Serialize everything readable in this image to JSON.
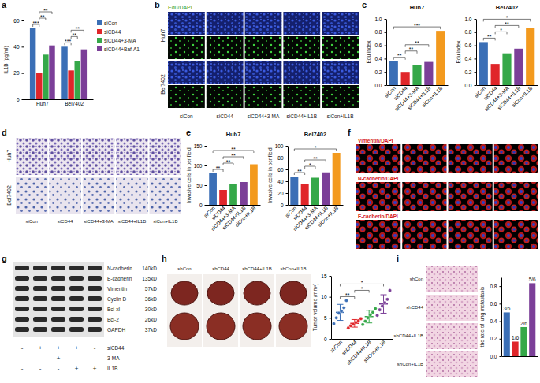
{
  "panel_letters": [
    "a",
    "b",
    "c",
    "d",
    "e",
    "f",
    "g",
    "h",
    "i"
  ],
  "chart_data": [
    {
      "type": "bar",
      "categories": [
        "Huh7",
        "Bel7402"
      ],
      "series": [
        {
          "name": "siCon",
          "color": "#3b6fb6",
          "values": [
            54,
            40
          ]
        },
        {
          "name": "siCD44",
          "color": "#e0262a",
          "values": [
            20,
            22
          ]
        },
        {
          "name": "siCD44+3-MA",
          "color": "#35a849",
          "values": [
            34,
            29
          ]
        },
        {
          "name": "siCD44+Baf-A1",
          "color": "#7b3f98",
          "values": [
            41,
            38
          ]
        }
      ],
      "ylabel": "IL1B (pg/ml)",
      "ylim": [
        0,
        60
      ],
      "yticks": [
        0,
        20,
        40,
        60
      ],
      "legend": "right",
      "annotations": [
        {
          "label": "***",
          "category": "Huh7",
          "between": [
            "siCon",
            "siCD44"
          ]
        },
        {
          "label": "**",
          "category": "Huh7",
          "between": [
            "siCD44",
            "siCD44+3-MA"
          ]
        },
        {
          "label": "**",
          "category": "Huh7",
          "between": [
            "siCD44",
            "siCD44+Baf-A1"
          ]
        },
        {
          "label": "***",
          "category": "Bel7402",
          "between": [
            "siCon",
            "siCD44"
          ]
        },
        {
          "label": "**",
          "category": "Bel7402",
          "between": [
            "siCD44",
            "siCD44+3-MA"
          ]
        },
        {
          "label": "**",
          "category": "Bel7402",
          "between": [
            "siCD44",
            "siCD44+Baf-A1"
          ]
        }
      ]
    },
    {
      "type": "bar",
      "title": "Huh7",
      "categories": [
        "siCon",
        "siCD44",
        "siCD44+3-MA",
        "siCD44+IL1B",
        "siCon+IL1B"
      ],
      "values": [
        0.36,
        0.2,
        0.3,
        0.35,
        0.82
      ],
      "colors": [
        "#3b6fb6",
        "#e0262a",
        "#35a849",
        "#7b3f98",
        "#f39a1e"
      ],
      "ylabel": "Edu index",
      "ylim": [
        0,
        1
      ],
      "yticks": [
        {
          "value": 0,
          "label": "0.0"
        },
        {
          "value": 0.2,
          "label": "0.2"
        },
        {
          "value": 0.4,
          "label": "0.4"
        },
        {
          "value": 0.6,
          "label": "0.6"
        },
        {
          "value": 0.8,
          "label": "0.8"
        },
        {
          "value": 1,
          "label": "1.0"
        }
      ],
      "annotations": [
        {
          "label": "**",
          "between": [
            "siCon",
            "siCD44"
          ]
        },
        {
          "label": "**",
          "between": [
            "siCD44",
            "siCD44+3-MA"
          ]
        },
        {
          "label": "**",
          "between": [
            "siCD44",
            "siCD44+IL1B"
          ]
        },
        {
          "label": "***",
          "between": [
            "siCon",
            "siCon+IL1B"
          ]
        }
      ]
    },
    {
      "type": "bar",
      "title": "Bel7402",
      "categories": [
        "siCon",
        "siCD44",
        "siCD44+3-MA",
        "siCD44+IL1B",
        "siCon+IL1B"
      ],
      "values": [
        0.65,
        0.32,
        0.48,
        0.55,
        0.86
      ],
      "colors": [
        "#3b6fb6",
        "#e0262a",
        "#35a849",
        "#7b3f98",
        "#f39a1e"
      ],
      "ylabel": "Edu index",
      "ylim": [
        0,
        1
      ],
      "yticks": [
        {
          "value": 0,
          "label": "0.0"
        },
        {
          "value": 0.2,
          "label": "0.2"
        },
        {
          "value": 0.4,
          "label": "0.4"
        },
        {
          "value": 0.6,
          "label": "0.6"
        },
        {
          "value": 0.8,
          "label": "0.8"
        },
        {
          "value": 1,
          "label": "1.0"
        }
      ],
      "annotations": [
        {
          "label": "**",
          "between": [
            "siCon",
            "siCD44"
          ]
        },
        {
          "label": "*",
          "between": [
            "siCD44",
            "siCD44+3-MA"
          ]
        },
        {
          "label": "**",
          "between": [
            "siCD44",
            "siCD44+IL1B"
          ]
        },
        {
          "label": "*",
          "between": [
            "siCon",
            "siCon+IL1B"
          ]
        }
      ]
    },
    {
      "type": "bar",
      "title": "Huh7",
      "categories": [
        "siCon",
        "siCD44",
        "siCD44+3-MA",
        "siCD44+IL1B",
        "siCon+IL1B"
      ],
      "values": [
        80,
        38,
        52,
        58,
        103
      ],
      "colors": [
        "#3b6fb6",
        "#e0262a",
        "#35a849",
        "#7b3f98",
        "#f39a1e"
      ],
      "ylabel": "Invasive cells in per field",
      "ylim": [
        0,
        150
      ],
      "yticks": [
        0,
        50,
        100,
        150
      ],
      "annotations": [
        {
          "label": "**",
          "between": [
            "siCon",
            "siCD44"
          ]
        },
        {
          "label": "**",
          "between": [
            "siCD44",
            "siCD44+3-MA"
          ]
        },
        {
          "label": "**",
          "between": [
            "siCD44",
            "siCD44+IL1B"
          ]
        },
        {
          "label": "**",
          "between": [
            "siCon",
            "siCon+IL1B"
          ]
        }
      ]
    },
    {
      "type": "bar",
      "title": "Bel7402",
      "categories": [
        "siCon",
        "siCD44",
        "siCD44+3-MA",
        "siCD44+IL1B",
        "siCon+IL1B"
      ],
      "values": [
        48,
        35,
        46,
        55,
        88
      ],
      "colors": [
        "#3b6fb6",
        "#e0262a",
        "#35a849",
        "#7b3f98",
        "#f39a1e"
      ],
      "ylabel": "Invasive cells in per field",
      "ylim": [
        0,
        100
      ],
      "yticks": [
        0,
        20,
        40,
        60,
        80,
        100
      ],
      "annotations": [
        {
          "label": "**",
          "between": [
            "siCon",
            "siCD44"
          ]
        },
        {
          "label": "*",
          "between": [
            "siCD44",
            "siCD44+3-MA"
          ]
        },
        {
          "label": "**",
          "between": [
            "siCD44",
            "siCD44+IL1B"
          ]
        },
        {
          "label": "*",
          "between": [
            "siCon",
            "siCon+IL1B"
          ]
        }
      ]
    },
    {
      "type": "dot",
      "categories": [
        "shCon",
        "shCD44",
        "shCD44+IL1B",
        "shCon+IL1B"
      ],
      "values": [
        6.3,
        3.7,
        5.3,
        8.3
      ],
      "errors": [
        1.9,
        0.9,
        1.5,
        2.2
      ],
      "points": [
        [
          3.6,
          5.0,
          6.1,
          6.6,
          7.4,
          9.1
        ],
        [
          2.6,
          3.1,
          3.5,
          3.9,
          4.3,
          4.8
        ],
        [
          3.4,
          4.2,
          5.0,
          5.7,
          6.3,
          7.2
        ],
        [
          5.6,
          6.9,
          7.8,
          8.6,
          9.4,
          11.5
        ]
      ],
      "colors": [
        "#3b6fb6",
        "#e0262a",
        "#35a849",
        "#7b3f98"
      ],
      "ylabel": "Tumor volume (mm³)",
      "ylim": [
        0,
        15
      ],
      "yticks": [
        0,
        5,
        10,
        15
      ],
      "annotations": [
        {
          "label": "**",
          "between": [
            "shCon",
            "shCD44"
          ]
        },
        {
          "label": "*",
          "between": [
            "shCD44",
            "shCD44+IL1B"
          ]
        },
        {
          "label": "*",
          "between": [
            "shCon",
            "shCon+IL1B"
          ]
        }
      ]
    },
    {
      "type": "bar",
      "categories": [
        null,
        null,
        null,
        null
      ],
      "values": [
        0.5,
        0.1667,
        0.3333,
        0.8333
      ],
      "value_labels": [
        "3/6",
        "1/6",
        "2/6",
        "5/6"
      ],
      "data_labels": true,
      "tick_labels": "y",
      "colors": [
        "#3b6fb6",
        "#e0262a",
        "#35a849",
        "#7b3f98"
      ],
      "ylabel": "the rate of lung metastasis",
      "ylim": [
        0,
        0.9
      ],
      "yticks": [
        {
          "value": 0,
          "label": "0.0"
        },
        {
          "value": 0.2,
          "label": "0.2"
        },
        {
          "value": 0.4,
          "label": "0.4"
        },
        {
          "value": 0.6,
          "label": "0.6"
        },
        {
          "value": 0.8,
          "label": "0.8"
        }
      ]
    }
  ],
  "image_panels": {
    "b": {
      "channel_label": "Edu/DAPI",
      "rows": [
        "Huh7",
        "Bel7402"
      ],
      "columns": [
        "siCon",
        "siCD44",
        "siCD44+3-MA",
        "siCD44+IL1B",
        "siCon+IL1B"
      ]
    },
    "d": {
      "rows": [
        "Huh7",
        "Bel7402"
      ],
      "columns": [
        "siCon",
        "siCD44",
        "siCD44+3-MA",
        "siCD44+IL1B",
        "siCon+IL1B"
      ]
    },
    "f": {
      "rows": [
        "Vimentin/DAPI",
        "N-cadherin/DAPI",
        "E-cadherin/DAPI"
      ]
    },
    "g": {
      "proteins": [
        {
          "name": "N-cadherin",
          "size": "140kD"
        },
        {
          "name": "E-cadherin",
          "size": "135kD"
        },
        {
          "name": "Vimentin",
          "size": "57kD"
        },
        {
          "name": "Cyclin D",
          "size": "36kD"
        },
        {
          "name": "Bcl-xl",
          "size": "30kD"
        },
        {
          "name": "Bcl-2",
          "size": "26kD"
        },
        {
          "name": "GAPDH",
          "size": "37kD"
        }
      ],
      "conditions": [
        {
          "name": "siCD44",
          "signs": [
            "-",
            "+",
            "+",
            "+",
            "-"
          ]
        },
        {
          "name": "3-MA",
          "signs": [
            "-",
            "-",
            "+",
            "-",
            "-"
          ]
        },
        {
          "name": "IL1B",
          "signs": [
            "-",
            "-",
            "-",
            "+",
            "+"
          ]
        }
      ]
    },
    "h": {
      "groups": [
        "shCon",
        "shCD44",
        "shCD44+IL1B",
        "shCon+IL1B"
      ]
    },
    "i": {
      "rows": [
        "shCon",
        "shCD44",
        "shCD44+IL1B",
        "shCon+IL1B"
      ]
    }
  }
}
